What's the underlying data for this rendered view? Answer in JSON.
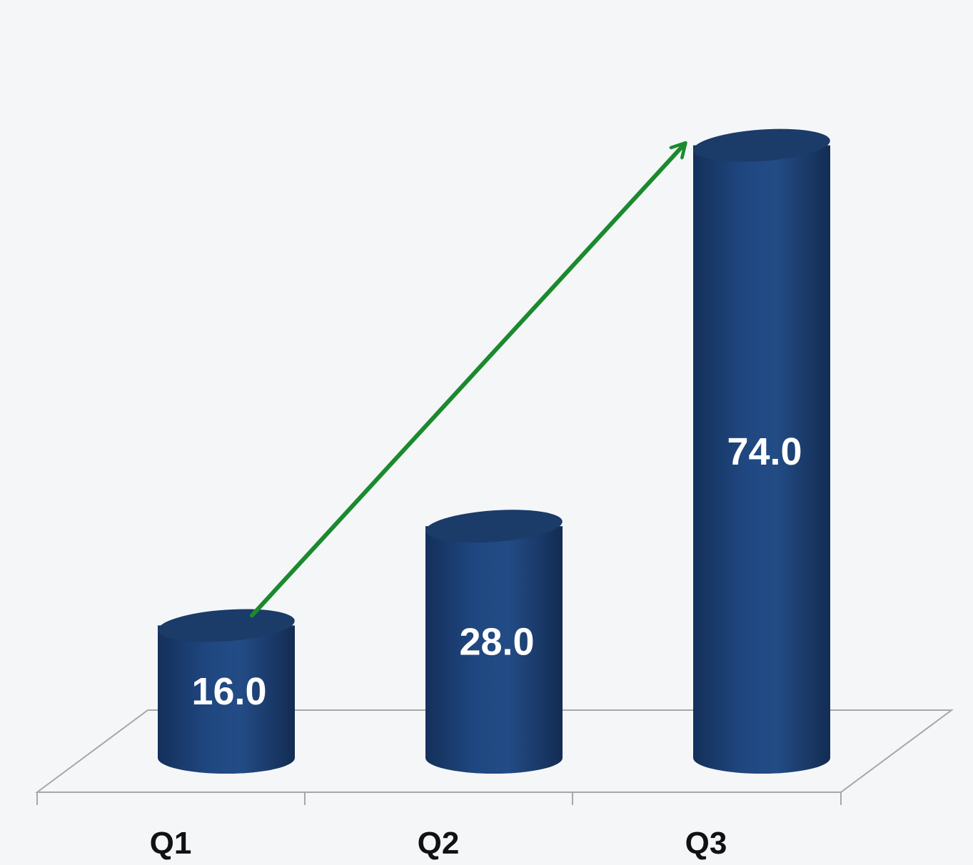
{
  "chart_data": {
    "type": "bar",
    "style": "3d-cylinder",
    "categories": [
      "Q1",
      "Q2",
      "Q3"
    ],
    "values": [
      16.0,
      28.0,
      74.0
    ],
    "value_labels": [
      "16.0",
      "28.0",
      "74.0"
    ],
    "title": "",
    "xlabel": "",
    "ylabel": "",
    "ylim": [
      0,
      80
    ],
    "grid": false,
    "legend": "none",
    "annotation": "trend-arrow",
    "annotations": [
      {
        "type": "arrow",
        "from_category": "Q1",
        "to_category": "Q3",
        "color": "#1b8a2e"
      }
    ],
    "colors": {
      "bar": "#1f467f",
      "bar_dark": "#16335e",
      "bar_top": "#1b3b69",
      "value_text": "#ffffff",
      "category_text": "#111111",
      "floor_line": "#a7a7a7",
      "arrow": "#1b8a2e",
      "background": "#f4f6f8"
    }
  }
}
